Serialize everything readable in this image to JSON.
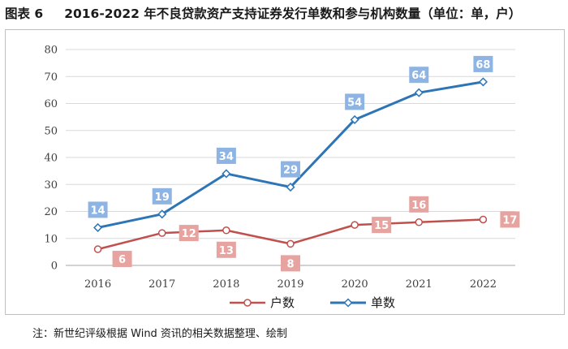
{
  "caption": {
    "label": "图表 6",
    "title": "2016-2022 年不良贷款资产支持证券发行单数和参与机构数量（单位：单，户）"
  },
  "chart_data": {
    "type": "line",
    "title": "2016-2022 年不良贷款资产支持证券发行单数和参与机构数量（单位：单，户）",
    "xlabel": "",
    "ylabel": "",
    "categories": [
      "2016",
      "2017",
      "2018",
      "2019",
      "2020",
      "2021",
      "2022"
    ],
    "ylim": [
      0,
      80
    ],
    "yticks": [
      0,
      10,
      20,
      30,
      40,
      50,
      60,
      70,
      80
    ],
    "grid": true,
    "legend_position": "bottom",
    "series": [
      {
        "name": "户数",
        "values": [
          6,
          12,
          13,
          8,
          15,
          16,
          17
        ],
        "color": "#c0504d",
        "marker": "circle",
        "label_color": "#e6a3a0",
        "label_placement": [
          "right-below",
          "right",
          "below",
          "below",
          "right",
          "above",
          "right"
        ]
      },
      {
        "name": "单数",
        "values": [
          14,
          19,
          34,
          29,
          54,
          64,
          68
        ],
        "color": "#2e75b6",
        "marker": "diamond",
        "label_color": "#8eb4e3",
        "label_placement": [
          "above",
          "above",
          "above",
          "above",
          "above",
          "above",
          "above"
        ]
      }
    ]
  },
  "note": "注：新世纪评级根据 Wind 资讯的相关数据整理、绘制"
}
